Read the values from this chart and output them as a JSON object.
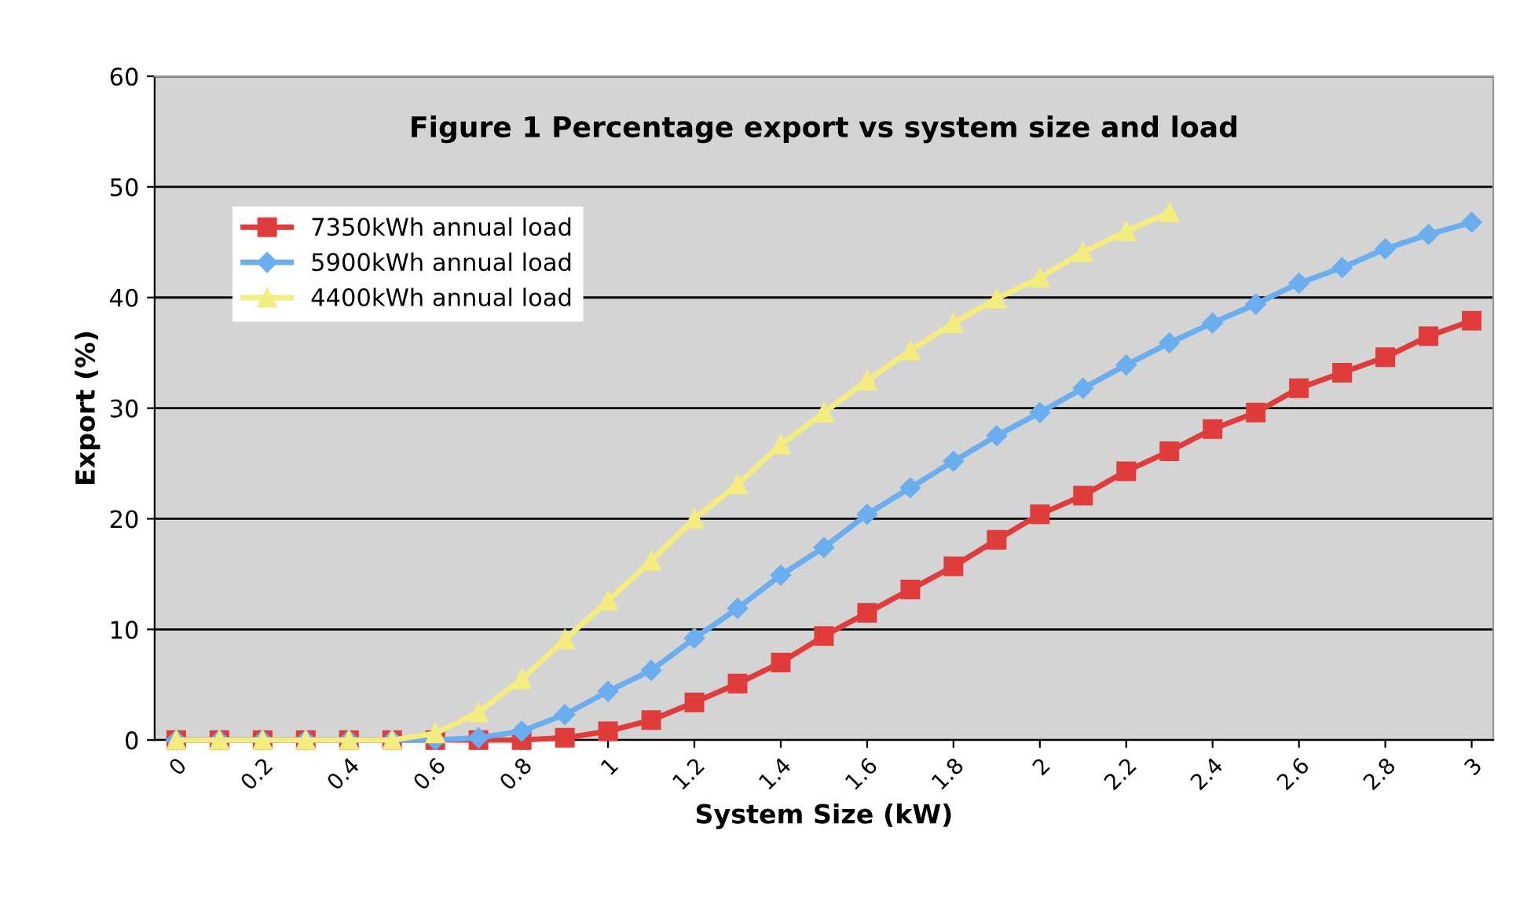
{
  "chart_data": {
    "type": "line",
    "title": "Figure 1 Percentage export vs system size and load",
    "xlabel": "System Size (kW)",
    "ylabel": "Export (%)",
    "x": [
      0,
      0.1,
      0.2,
      0.3,
      0.4,
      0.5,
      0.6,
      0.7,
      0.8,
      0.9,
      1.0,
      1.1,
      1.2,
      1.3,
      1.4,
      1.5,
      1.6,
      1.7,
      1.8,
      1.9,
      2.0,
      2.1,
      2.2,
      2.3,
      2.4,
      2.5,
      2.6,
      2.7,
      2.8,
      2.9,
      3.0
    ],
    "series": [
      {
        "name": "7350kWh annual load",
        "color": "#e03c3c",
        "marker": "square",
        "values": [
          0,
          0,
          0,
          0,
          0,
          0,
          0,
          0,
          0,
          0.2,
          0.8,
          1.8,
          3.4,
          5.1,
          7,
          9.4,
          11.5,
          13.6,
          15.7,
          18.1,
          20.4,
          22.1,
          24.3,
          26.1,
          28.1,
          29.6,
          31.8,
          33.2,
          34.6,
          36.5,
          37.9
        ]
      },
      {
        "name": "5900kWh annual load",
        "color": "#6aaef0",
        "marker": "diamond",
        "values": [
          0,
          0,
          0,
          0,
          0,
          0,
          0,
          0.2,
          0.8,
          2.3,
          4.4,
          6.3,
          9.2,
          11.9,
          14.9,
          17.4,
          20.4,
          22.8,
          25.2,
          27.5,
          29.6,
          31.8,
          33.9,
          35.9,
          37.7,
          39.4,
          41.3,
          42.7,
          44.4,
          45.7,
          46.8
        ]
      },
      {
        "name": "4400kWh annual load",
        "color": "#f5ec80",
        "marker": "triangle",
        "values": [
          0,
          0,
          0,
          0,
          0,
          0,
          0.6,
          2.5,
          5.5,
          9.1,
          12.6,
          16.2,
          20,
          23.1,
          26.7,
          29.6,
          32.5,
          35.2,
          37.7,
          39.9,
          41.8,
          44.1,
          46,
          47.7,
          null,
          null,
          null,
          null,
          null,
          null,
          null
        ]
      }
    ],
    "xlim": [
      -0.05,
      3.05
    ],
    "xticks": [
      0,
      0.2,
      0.4,
      0.6,
      0.8,
      1,
      1.2,
      1.4,
      1.6,
      1.8,
      2,
      2.2,
      2.4,
      2.6,
      2.8,
      3
    ],
    "ylim": [
      0,
      60
    ],
    "yticks": [
      0,
      10,
      20,
      30,
      40,
      50,
      60
    ],
    "grid": "y",
    "legend": "top left",
    "line_style": "solid"
  }
}
